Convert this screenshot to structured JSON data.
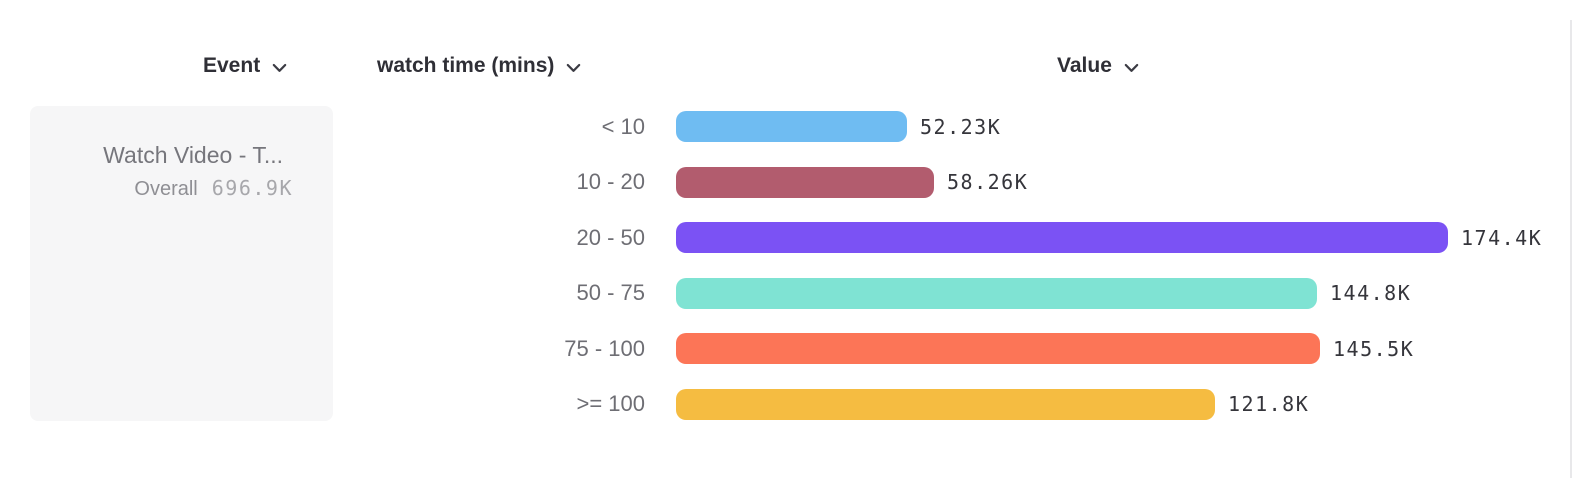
{
  "header": {
    "columns": [
      {
        "id": "event",
        "label": "Event"
      },
      {
        "id": "watch_time",
        "label": "watch time (mins)"
      },
      {
        "id": "value",
        "label": "Value"
      }
    ]
  },
  "event_card": {
    "title": "Watch Video - T...",
    "overall_label": "Overall",
    "overall_value": "696.9K"
  },
  "chart_data": {
    "type": "bar",
    "orientation": "horizontal",
    "title": "",
    "xlabel": "Value",
    "ylabel": "watch time (mins)",
    "categories": [
      "< 10",
      "10 - 20",
      "20 - 50",
      "50 - 75",
      "75 - 100",
      ">= 100"
    ],
    "values": [
      52230,
      58260,
      174400,
      144800,
      145500,
      121800
    ],
    "value_labels": [
      "52.23K",
      "58.26K",
      "174.4K",
      "144.8K",
      "145.5K",
      "121.8K"
    ],
    "bar_colors": [
      "#6FBCF2",
      "#B25C6E",
      "#7B52F4",
      "#7FE3D3",
      "#FC7557",
      "#F5BC41"
    ],
    "series_name": "Watch Video - Overall 696.9K",
    "grid": false,
    "legend_position": "none",
    "max_value": 174400
  }
}
